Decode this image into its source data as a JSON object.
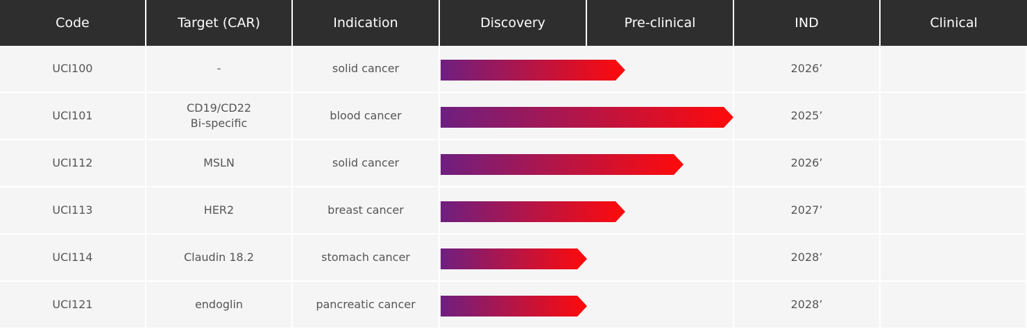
{
  "header": {
    "code": "Code",
    "target": "Target (CAR)",
    "indication": "Indication",
    "discovery": "Discovery",
    "preclinical": "Pre-clinical",
    "ind": "IND",
    "clinical": "Clinical"
  },
  "colors": {
    "header_bg": "#2e2e2e",
    "row_bg": "#f5f5f5",
    "bar_start": "#6e1f80",
    "bar_end": "#ff0a0a"
  },
  "rows": [
    {
      "code": "UCI100",
      "target_line1": "-",
      "target_line2": "",
      "indication": "solid cancer",
      "ind_year": "2026’",
      "progress": 0.63
    },
    {
      "code": "UCI101",
      "target_line1": "CD19/CD22",
      "target_line2": "Bi-specific",
      "indication": "blood cancer",
      "ind_year": "2025’",
      "progress": 1.0
    },
    {
      "code": "UCI112",
      "target_line1": "MSLN",
      "target_line2": "",
      "indication": "solid cancer",
      "ind_year": "2026’",
      "progress": 0.83
    },
    {
      "code": "UCI113",
      "target_line1": "HER2",
      "target_line2": "",
      "indication": "breast cancer",
      "ind_year": "2027’",
      "progress": 0.63
    },
    {
      "code": "UCI114",
      "target_line1": "Claudin 18.2",
      "target_line2": "",
      "indication": "stomach cancer",
      "ind_year": "2028’",
      "progress": 0.5
    },
    {
      "code": "UCI121",
      "target_line1": "endoglin",
      "target_line2": "",
      "indication": "pancreatic cancer",
      "ind_year": "2028’",
      "progress": 0.5
    }
  ]
}
